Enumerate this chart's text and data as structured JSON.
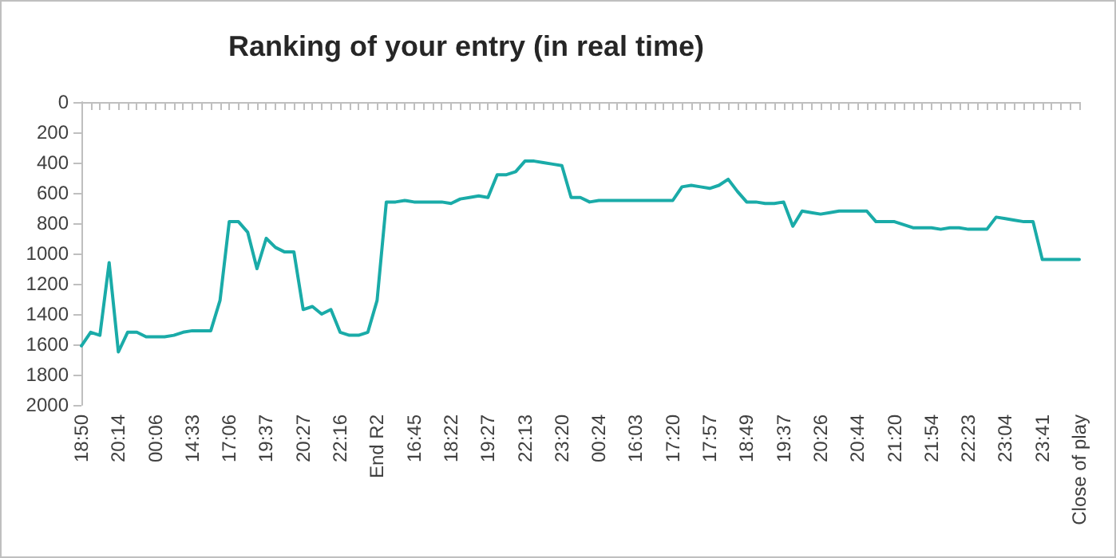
{
  "chart_data": {
    "type": "line",
    "title": "Ranking of your entry (in real time)",
    "categories": [
      "18:50",
      null,
      null,
      null,
      "20:14",
      null,
      null,
      null,
      "00:06",
      null,
      null,
      null,
      "14:33",
      null,
      null,
      null,
      "17:06",
      null,
      null,
      null,
      "19:37",
      null,
      null,
      null,
      "20:27",
      null,
      null,
      null,
      "22:16",
      null,
      null,
      null,
      "End R2",
      null,
      null,
      null,
      "16:45",
      null,
      null,
      null,
      "18:22",
      null,
      null,
      null,
      "19:27",
      null,
      null,
      null,
      "22:13",
      null,
      null,
      null,
      "23:20",
      null,
      null,
      null,
      "00:24",
      null,
      null,
      null,
      "16:03",
      null,
      null,
      null,
      "17:20",
      null,
      null,
      null,
      "17:57",
      null,
      null,
      null,
      "18:49",
      null,
      null,
      null,
      "19:37",
      null,
      null,
      null,
      "20:26",
      null,
      null,
      null,
      "20:44",
      null,
      null,
      null,
      "21:20",
      null,
      null,
      null,
      "21:54",
      null,
      null,
      null,
      "22:23",
      null,
      null,
      null,
      "23:04",
      null,
      null,
      null,
      "23:41",
      null,
      null,
      null,
      "Close of play"
    ],
    "series": [
      {
        "color": "#1aaba8",
        "values": [
          1610,
          1520,
          1540,
          1060,
          1650,
          1520,
          1520,
          1550,
          1550,
          1550,
          1540,
          1520,
          1510,
          1510,
          1510,
          1310,
          790,
          790,
          860,
          1100,
          900,
          960,
          990,
          990,
          1370,
          1350,
          1400,
          1370,
          1520,
          1540,
          1540,
          1520,
          1310,
          660,
          660,
          650,
          660,
          660,
          660,
          660,
          670,
          640,
          630,
          620,
          630,
          480,
          480,
          460,
          390,
          390,
          400,
          410,
          420,
          630,
          630,
          660,
          650,
          650,
          650,
          650,
          650,
          650,
          650,
          650,
          650,
          560,
          550,
          560,
          570,
          550,
          510,
          590,
          660,
          660,
          670,
          670,
          660,
          820,
          720,
          730,
          740,
          730,
          720,
          720,
          720,
          720,
          790,
          790,
          790,
          810,
          830,
          830,
          830,
          840,
          830,
          830,
          840,
          840,
          840,
          760,
          770,
          780,
          790,
          790,
          1040,
          1040,
          1040,
          1040,
          1040
        ]
      }
    ],
    "ylim": [
      2000,
      0
    ],
    "yticks": [
      0,
      200,
      400,
      600,
      800,
      1000,
      1200,
      1400,
      1600,
      1800,
      2000
    ],
    "grid": false,
    "marker": "none",
    "line_style": "solid"
  }
}
